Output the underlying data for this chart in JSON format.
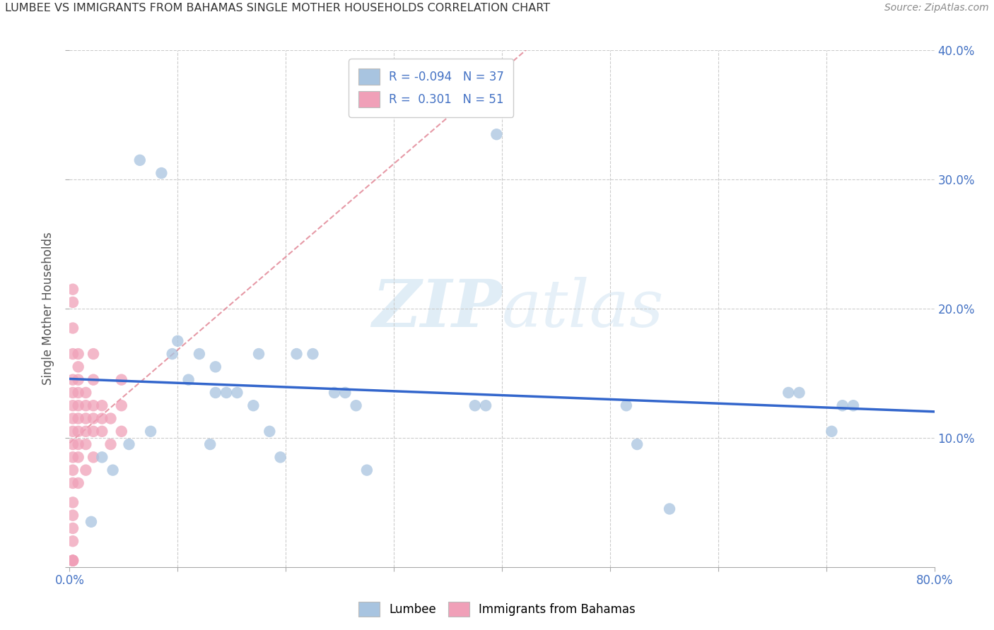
{
  "title": "LUMBEE VS IMMIGRANTS FROM BAHAMAS SINGLE MOTHER HOUSEHOLDS CORRELATION CHART",
  "source": "Source: ZipAtlas.com",
  "ylabel": "Single Mother Households",
  "legend_labels": [
    "Lumbee",
    "Immigrants from Bahamas"
  ],
  "lumbee_R": "-0.094",
  "lumbee_N": "37",
  "bahamas_R": "0.301",
  "bahamas_N": "51",
  "lumbee_color": "#a8c4e0",
  "bahamas_color": "#f0a0b8",
  "lumbee_line_color": "#3366cc",
  "bahamas_line_color": "#e08090",
  "xlim": [
    0.0,
    0.8
  ],
  "ylim": [
    0.0,
    0.4
  ],
  "x_ticks": [
    0.0,
    0.1,
    0.2,
    0.3,
    0.4,
    0.5,
    0.6,
    0.7,
    0.8
  ],
  "y_ticks": [
    0.0,
    0.1,
    0.2,
    0.3,
    0.4
  ],
  "y_tick_labels_right": [
    "",
    "10.0%",
    "20.0%",
    "30.0%",
    "40.0%"
  ],
  "watermark_part1": "ZIP",
  "watermark_part2": "atlas",
  "lumbee_x": [
    0.02,
    0.04,
    0.065,
    0.085,
    0.1,
    0.11,
    0.12,
    0.13,
    0.135,
    0.145,
    0.17,
    0.175,
    0.185,
    0.195,
    0.21,
    0.225,
    0.245,
    0.255,
    0.265,
    0.275,
    0.375,
    0.385,
    0.395,
    0.515,
    0.525,
    0.555,
    0.665,
    0.675,
    0.705,
    0.715,
    0.725,
    0.03,
    0.055,
    0.075,
    0.095,
    0.135,
    0.155
  ],
  "lumbee_y": [
    0.035,
    0.075,
    0.315,
    0.305,
    0.175,
    0.145,
    0.165,
    0.095,
    0.135,
    0.135,
    0.125,
    0.165,
    0.105,
    0.085,
    0.165,
    0.165,
    0.135,
    0.135,
    0.125,
    0.075,
    0.125,
    0.125,
    0.335,
    0.125,
    0.095,
    0.045,
    0.135,
    0.135,
    0.105,
    0.125,
    0.125,
    0.085,
    0.095,
    0.105,
    0.165,
    0.155,
    0.135
  ],
  "bahamas_x": [
    0.003,
    0.003,
    0.003,
    0.003,
    0.003,
    0.003,
    0.003,
    0.003,
    0.003,
    0.003,
    0.003,
    0.003,
    0.003,
    0.003,
    0.003,
    0.003,
    0.003,
    0.008,
    0.008,
    0.008,
    0.008,
    0.008,
    0.008,
    0.008,
    0.008,
    0.008,
    0.008,
    0.015,
    0.015,
    0.015,
    0.015,
    0.015,
    0.015,
    0.022,
    0.022,
    0.022,
    0.022,
    0.022,
    0.022,
    0.03,
    0.03,
    0.03,
    0.038,
    0.038,
    0.048,
    0.048,
    0.048,
    0.003,
    0.003,
    0.003,
    0.003
  ],
  "bahamas_y": [
    0.005,
    0.02,
    0.03,
    0.04,
    0.05,
    0.065,
    0.075,
    0.085,
    0.095,
    0.105,
    0.115,
    0.125,
    0.135,
    0.145,
    0.165,
    0.185,
    0.205,
    0.065,
    0.085,
    0.095,
    0.105,
    0.115,
    0.125,
    0.135,
    0.145,
    0.155,
    0.165,
    0.075,
    0.095,
    0.105,
    0.115,
    0.125,
    0.135,
    0.085,
    0.105,
    0.115,
    0.125,
    0.145,
    0.165,
    0.105,
    0.115,
    0.125,
    0.095,
    0.115,
    0.105,
    0.125,
    0.145,
    0.215,
    0.005,
    0.005,
    0.005
  ]
}
